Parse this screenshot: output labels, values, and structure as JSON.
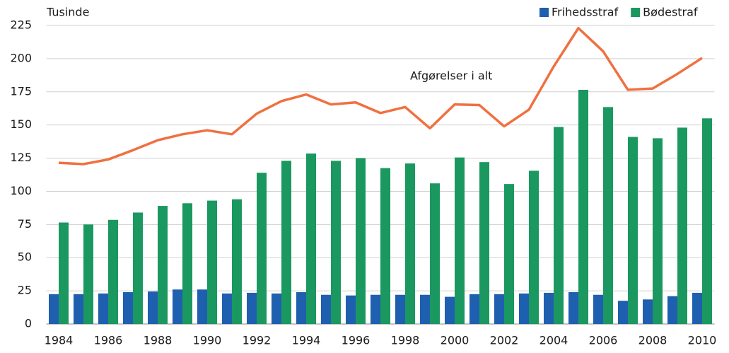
{
  "chart_data": {
    "type": "bar",
    "y_label": "Tusinde",
    "categories": [
      "1984",
      null,
      "1986",
      null,
      "1988",
      null,
      "1990",
      null,
      "1992",
      null,
      "1994",
      null,
      "1996",
      null,
      "1998",
      null,
      "2000",
      null,
      "2002",
      null,
      "2004",
      null,
      "2006",
      null,
      "2008",
      null,
      "2010"
    ],
    "series": [
      {
        "name": "Frihedsstraf",
        "color": "#1f5fb0",
        "type": "bar",
        "values": [
          22.5,
          22.5,
          23,
          24,
          24.5,
          26,
          26,
          23,
          23.5,
          23,
          24,
          22,
          21.5,
          22,
          22,
          22,
          20.5,
          22.5,
          22.5,
          23,
          23.5,
          24,
          22,
          17.5,
          18.5,
          21,
          23.5
        ]
      },
      {
        "name": "Bødestraf",
        "color": "#1a9860",
        "type": "bar",
        "values": [
          76.5,
          75,
          78.5,
          84,
          89,
          91,
          93,
          94,
          114,
          123,
          128.5,
          123,
          125,
          117.5,
          121,
          106,
          125.5,
          122,
          105.5,
          115.5,
          148.5,
          176.5,
          163.5,
          141,
          140,
          148,
          155
        ]
      },
      {
        "name": "Afgørelser i alt",
        "color": "#f07040",
        "type": "line",
        "values": [
          121.5,
          120.5,
          124,
          131,
          138.5,
          143,
          146,
          143,
          158.5,
          168,
          173,
          165.5,
          167,
          159,
          163.5,
          147.5,
          165.5,
          165,
          149,
          161.5,
          194,
          223,
          205.5,
          176.5,
          177.5,
          188.5,
          200.5
        ]
      }
    ],
    "ylim": [
      0,
      225
    ],
    "yticks": [
      0,
      25,
      50,
      75,
      100,
      125,
      150,
      175,
      200,
      225
    ],
    "grid": true,
    "legend": "top-right"
  }
}
